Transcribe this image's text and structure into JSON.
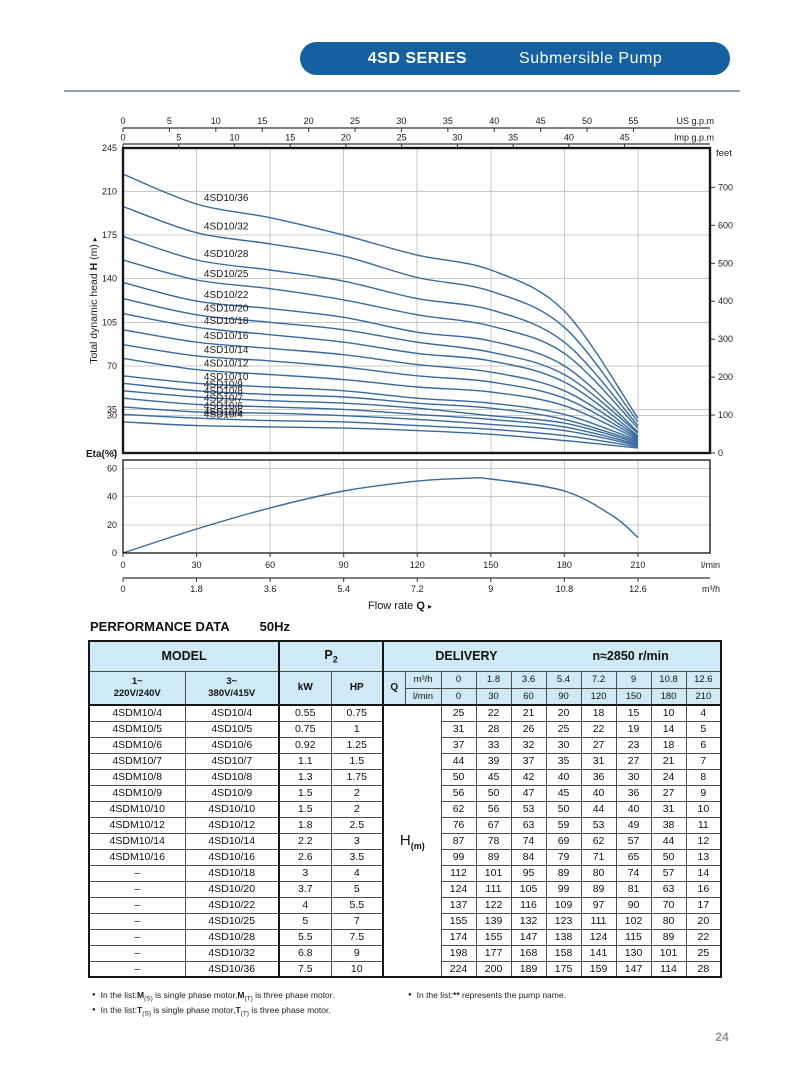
{
  "colors": {
    "accent_blue": "#15619f",
    "curve_blue": "#37699f",
    "grid_gray": "#c9c9c9",
    "table_header_bg": "#cfe9f5",
    "border_dark": "#161616"
  },
  "banner": {
    "series": "4SD SERIES",
    "product": "Submersible Pump"
  },
  "page_number": "24",
  "chart_data": [
    {
      "type": "line",
      "name": "head-curves",
      "top_axis_us": {
        "unit": "US g.p.m",
        "ticks": [
          0,
          5,
          10,
          15,
          20,
          25,
          30,
          35,
          40,
          45,
          50,
          55
        ]
      },
      "top_axis_imp": {
        "unit": "Imp g.p.m",
        "ticks": [
          0,
          5,
          10,
          15,
          20,
          25,
          30,
          35,
          40,
          45
        ]
      },
      "ylabel_parts": {
        "pre": "Total dynamic head ",
        "bold": "H",
        "post": " (m)"
      },
      "ylabel_arrow": "▸",
      "ylim": [
        0,
        245
      ],
      "yticks": [
        245,
        210,
        175,
        140,
        105,
        70,
        35,
        30,
        0
      ],
      "right_axis": {
        "unit": "feet",
        "ticks": [
          700,
          600,
          500,
          400,
          300,
          200,
          100,
          0
        ]
      },
      "x_lmin": [
        0,
        30,
        60,
        90,
        120,
        150,
        180,
        210
      ],
      "series": [
        {
          "name": "4SD10/4",
          "values": [
            25,
            22,
            21,
            20,
            18,
            15,
            10,
            4
          ]
        },
        {
          "name": "4SD10/5",
          "values": [
            31,
            28,
            26,
            25,
            22,
            19,
            14,
            5
          ]
        },
        {
          "name": "4SD10/6",
          "values": [
            37,
            33,
            32,
            30,
            27,
            23,
            18,
            6
          ]
        },
        {
          "name": "4SD10/7",
          "values": [
            44,
            39,
            37,
            35,
            31,
            27,
            21,
            7
          ]
        },
        {
          "name": "4SD10/8",
          "values": [
            50,
            45,
            42,
            40,
            36,
            30,
            24,
            8
          ]
        },
        {
          "name": "4SD10/9",
          "values": [
            56,
            50,
            47,
            45,
            40,
            36,
            27,
            9
          ]
        },
        {
          "name": "4SD10/10",
          "values": [
            62,
            56,
            53,
            50,
            44,
            40,
            31,
            10
          ]
        },
        {
          "name": "4SD10/12",
          "values": [
            76,
            67,
            63,
            59,
            53,
            49,
            38,
            11
          ]
        },
        {
          "name": "4SD10/14",
          "values": [
            87,
            78,
            74,
            69,
            62,
            57,
            44,
            12
          ]
        },
        {
          "name": "4SD10/16",
          "values": [
            99,
            89,
            84,
            79,
            71,
            65,
            50,
            13
          ]
        },
        {
          "name": "4SD10/18",
          "values": [
            112,
            101,
            95,
            89,
            80,
            74,
            57,
            14
          ]
        },
        {
          "name": "4SD10/20",
          "values": [
            124,
            111,
            105,
            99,
            89,
            81,
            63,
            16
          ]
        },
        {
          "name": "4SD10/22",
          "values": [
            137,
            122,
            116,
            109,
            97,
            90,
            70,
            17
          ]
        },
        {
          "name": "4SD10/25",
          "values": [
            155,
            139,
            132,
            123,
            111,
            102,
            80,
            20
          ]
        },
        {
          "name": "4SD10/28",
          "values": [
            174,
            155,
            147,
            138,
            124,
            115,
            89,
            22
          ]
        },
        {
          "name": "4SD10/32",
          "values": [
            198,
            177,
            168,
            158,
            141,
            130,
            101,
            25
          ]
        },
        {
          "name": "4SD10/36",
          "values": [
            224,
            200,
            189,
            175,
            159,
            147,
            114,
            28
          ]
        }
      ]
    },
    {
      "type": "line",
      "name": "efficiency",
      "ylabel": "Eta(%)",
      "yticks": [
        60,
        40,
        20,
        0
      ],
      "ylim": [
        0,
        66
      ],
      "x": [
        0,
        30,
        60,
        90,
        120,
        140,
        150,
        180,
        200,
        210
      ],
      "values": [
        0,
        17,
        32,
        44,
        51,
        53,
        52.5,
        44,
        26,
        11
      ],
      "bottom_axis_lmin": {
        "unit": "l/min",
        "ticks": [
          "0",
          "30",
          "60",
          "90",
          "120",
          "150",
          "180",
          "210"
        ]
      },
      "bottom_axis_m3h": {
        "unit": "m³/h",
        "ticks": [
          "0",
          "1.8",
          "3.6",
          "5.4",
          "7.2",
          "9",
          "10.8",
          "12.6"
        ]
      },
      "xlabel_parts": {
        "pre": "Flow rate",
        "bold": "Q"
      },
      "xlabel_arrow": "▸"
    }
  ],
  "table": {
    "title": "PERFORMANCE DATA",
    "freq": "50Hz",
    "header": {
      "model": "MODEL",
      "p2_main": "P",
      "p2_sub": "2",
      "delivery": "DELIVERY",
      "speed": "n≈2850 r/min",
      "phase1": "1~",
      "volt1": "220V/240V",
      "phase3": "3~",
      "volt3": "380V/415V",
      "kw": "kW",
      "hp": "HP",
      "q": "Q",
      "unit_m3h": "m³/h",
      "unit_lmin": "l/min",
      "flows_m3h": [
        "0",
        "1.8",
        "3.6",
        "5.4",
        "7.2",
        "9",
        "10.8",
        "12.6"
      ],
      "flows_lmin": [
        "0",
        "30",
        "60",
        "90",
        "120",
        "150",
        "180",
        "210"
      ]
    },
    "h_cell": {
      "main": "H",
      "sub": "(m)"
    },
    "rows": [
      {
        "m1": "4SDM10/4",
        "m2": "4SD10/4",
        "kw": "0.55",
        "hp": "0.75",
        "delivery": [
          25,
          22,
          21,
          20,
          18,
          15,
          10,
          4
        ]
      },
      {
        "m1": "4SDM10/5",
        "m2": "4SD10/5",
        "kw": "0.75",
        "hp": "1",
        "delivery": [
          31,
          28,
          26,
          25,
          22,
          19,
          14,
          5
        ]
      },
      {
        "m1": "4SDM10/6",
        "m2": "4SD10/6",
        "kw": "0.92",
        "hp": "1.25",
        "delivery": [
          37,
          33,
          32,
          30,
          27,
          23,
          18,
          6
        ]
      },
      {
        "m1": "4SDM10/7",
        "m2": "4SD10/7",
        "kw": "1.1",
        "hp": "1.5",
        "delivery": [
          44,
          39,
          37,
          35,
          31,
          27,
          21,
          7
        ]
      },
      {
        "m1": "4SDM10/8",
        "m2": "4SD10/8",
        "kw": "1.3",
        "hp": "1.75",
        "delivery": [
          50,
          45,
          42,
          40,
          36,
          30,
          24,
          8
        ]
      },
      {
        "m1": "4SDM10/9",
        "m2": "4SD10/9",
        "kw": "1.5",
        "hp": "2",
        "delivery": [
          56,
          50,
          47,
          45,
          40,
          36,
          27,
          9
        ]
      },
      {
        "m1": "4SDM10/10",
        "m2": "4SD10/10",
        "kw": "1.5",
        "hp": "2",
        "delivery": [
          62,
          56,
          53,
          50,
          44,
          40,
          31,
          10
        ]
      },
      {
        "m1": "4SDM10/12",
        "m2": "4SD10/12",
        "kw": "1.8",
        "hp": "2.5",
        "delivery": [
          76,
          67,
          63,
          59,
          53,
          49,
          38,
          11
        ]
      },
      {
        "m1": "4SDM10/14",
        "m2": "4SD10/14",
        "kw": "2.2",
        "hp": "3",
        "delivery": [
          87,
          78,
          74,
          69,
          62,
          57,
          44,
          12
        ]
      },
      {
        "m1": "4SDM10/16",
        "m2": "4SD10/16",
        "kw": "2.6",
        "hp": "3.5",
        "delivery": [
          99,
          89,
          84,
          79,
          71,
          65,
          50,
          13
        ]
      },
      {
        "m1": "–",
        "m2": "4SD10/18",
        "kw": "3",
        "hp": "4",
        "delivery": [
          112,
          101,
          95,
          89,
          80,
          74,
          57,
          14
        ]
      },
      {
        "m1": "–",
        "m2": "4SD10/20",
        "kw": "3.7",
        "hp": "5",
        "delivery": [
          124,
          111,
          105,
          99,
          89,
          81,
          63,
          16
        ]
      },
      {
        "m1": "–",
        "m2": "4SD10/22",
        "kw": "4",
        "hp": "5.5",
        "delivery": [
          137,
          122,
          116,
          109,
          97,
          90,
          70,
          17
        ]
      },
      {
        "m1": "–",
        "m2": "4SD10/25",
        "kw": "5",
        "hp": "7",
        "delivery": [
          155,
          139,
          132,
          123,
          111,
          102,
          80,
          20
        ]
      },
      {
        "m1": "–",
        "m2": "4SD10/28",
        "kw": "5.5",
        "hp": "7.5",
        "delivery": [
          174,
          155,
          147,
          138,
          124,
          115,
          89,
          22
        ]
      },
      {
        "m1": "–",
        "m2": "4SD10/32",
        "kw": "6.8",
        "hp": "9",
        "delivery": [
          198,
          177,
          168,
          158,
          141,
          130,
          101,
          25
        ]
      },
      {
        "m1": "–",
        "m2": "4SD10/36",
        "kw": "7.5",
        "hp": "10",
        "delivery": [
          224,
          200,
          189,
          175,
          159,
          147,
          114,
          28
        ]
      }
    ]
  },
  "footnotes": {
    "left": [
      [
        {
          "t": "In the list:"
        },
        {
          "t": "M",
          "b": true
        },
        {
          "t": "(S)",
          "sub": true
        },
        {
          "t": " is single phase motor,"
        },
        {
          "t": "M",
          "b": true
        },
        {
          "t": "(T)",
          "sub": true
        },
        {
          "t": " is three phase motor."
        }
      ],
      [
        {
          "t": "In the list:"
        },
        {
          "t": "T",
          "b": true
        },
        {
          "t": "(S)",
          "sub": true
        },
        {
          "t": " is single phase motor,"
        },
        {
          "t": "T",
          "b": true
        },
        {
          "t": "(T)",
          "sub": true
        },
        {
          "t": " is three phase motor."
        }
      ]
    ],
    "right": [
      [
        {
          "t": "In the list:"
        },
        {
          "t": "**",
          "b": true
        },
        {
          "t": " represents the pump name."
        }
      ]
    ]
  }
}
